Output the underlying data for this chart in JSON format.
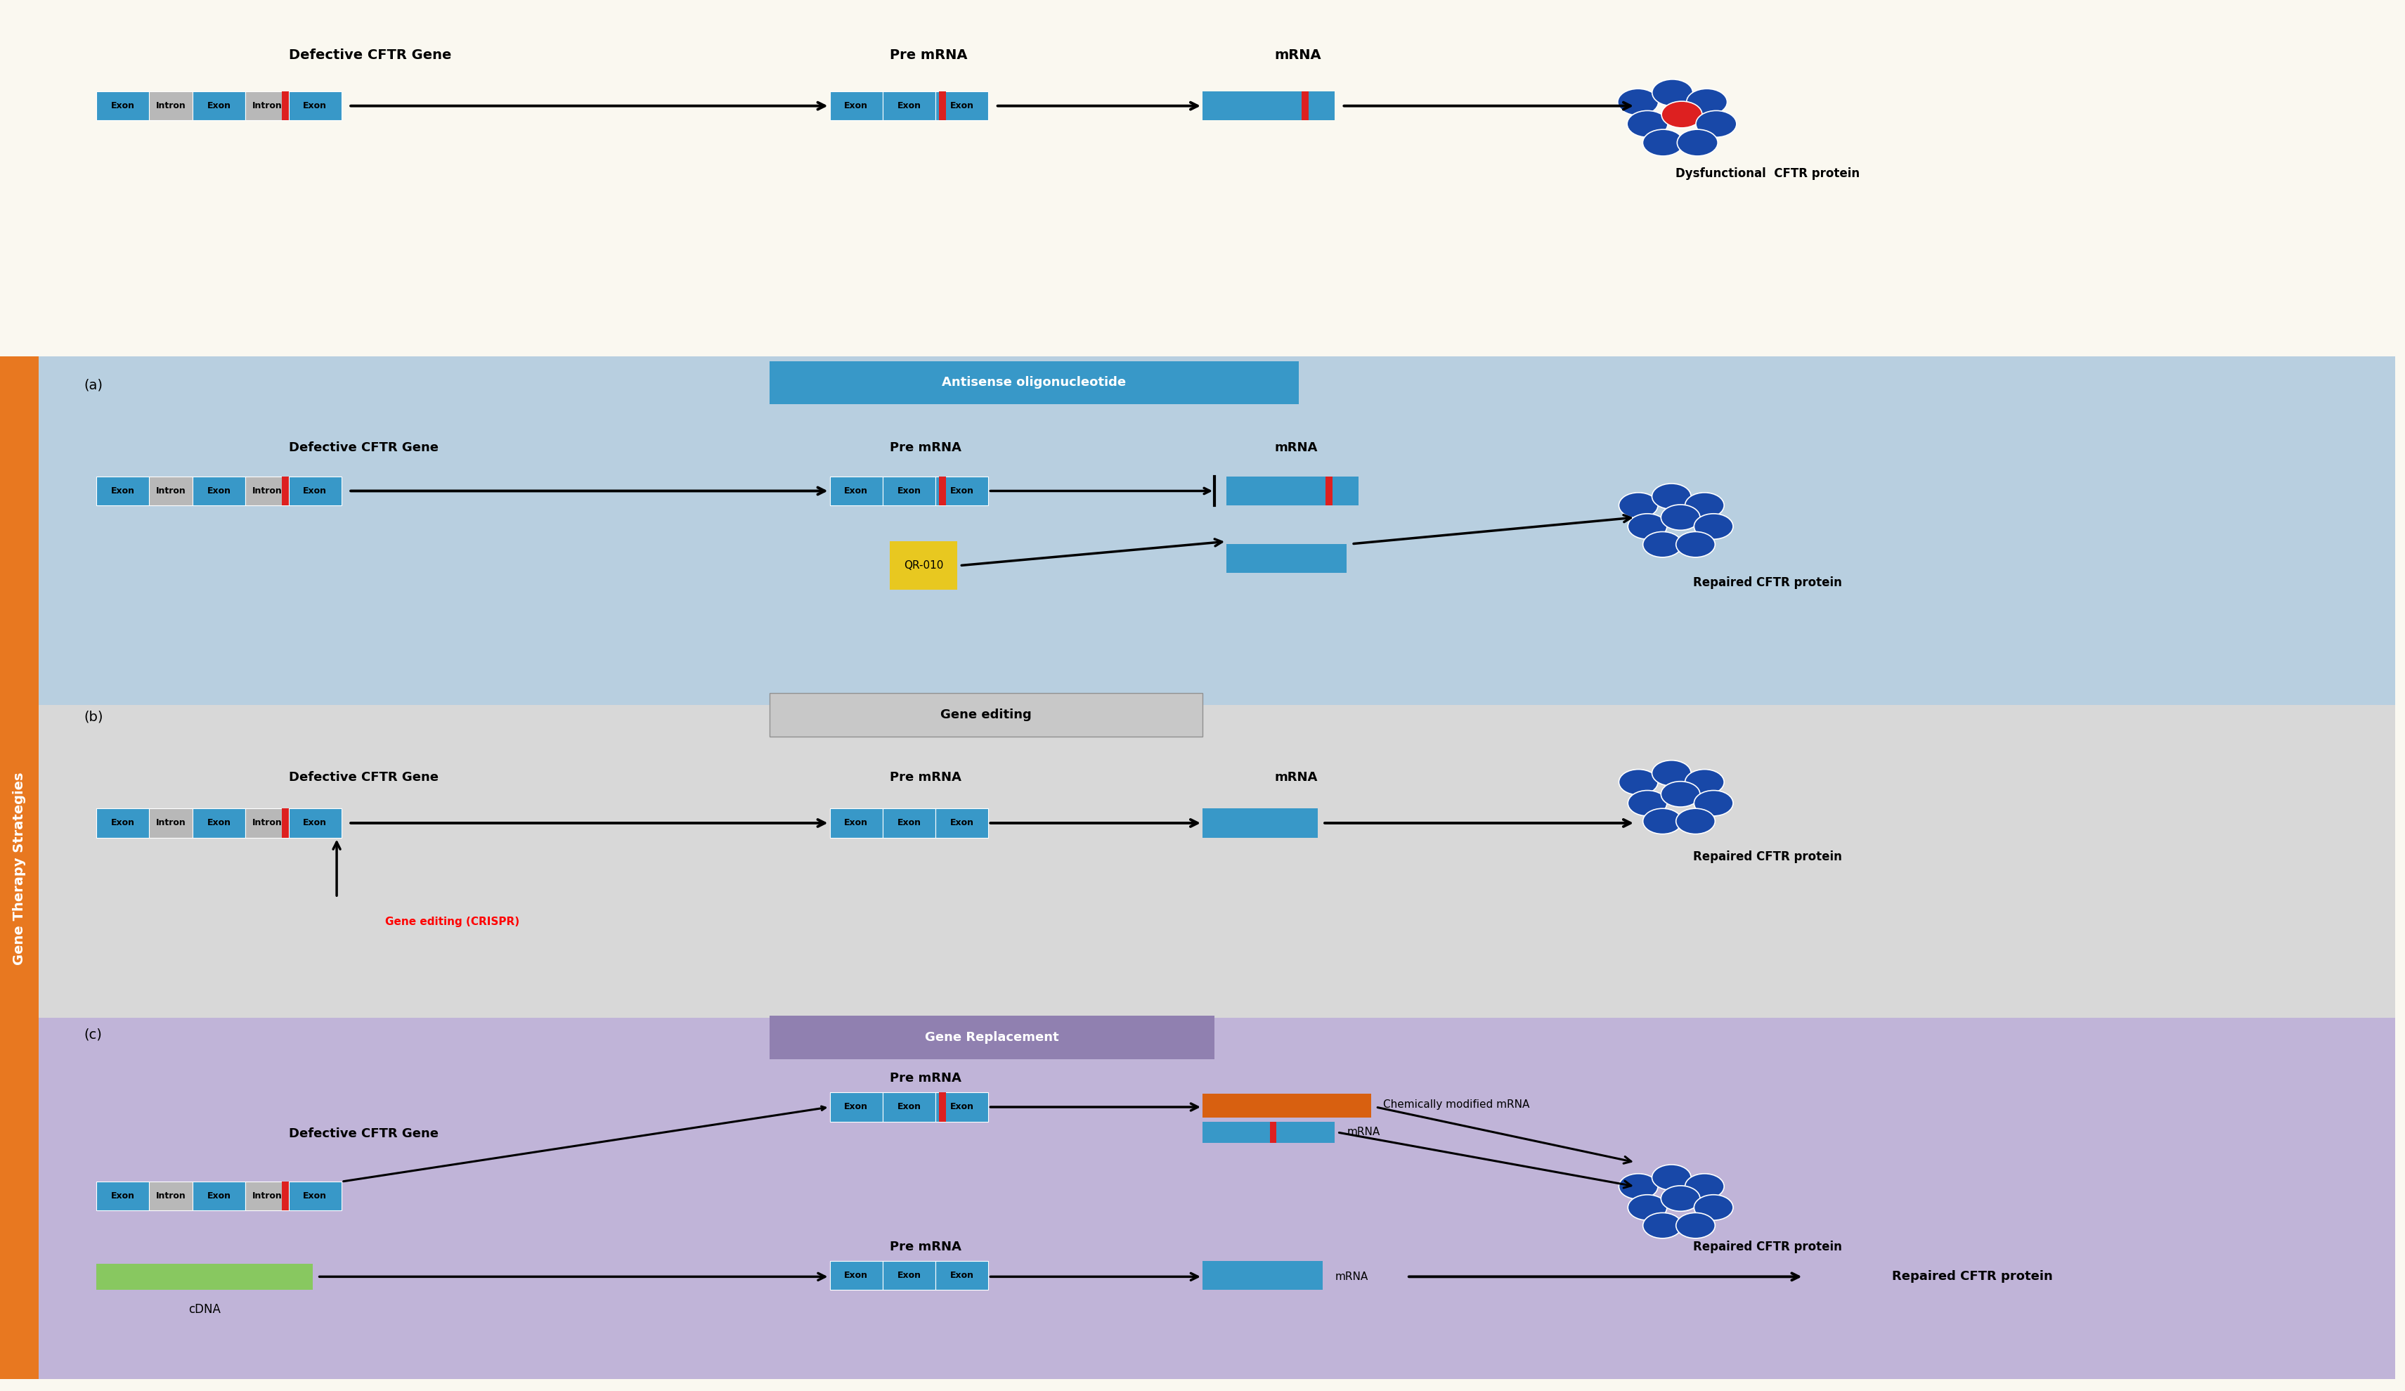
{
  "bg_top": "#faf8f0",
  "bg_a": "#b8cfe0",
  "bg_b": "#d8d8d8",
  "bg_c": "#c0b4d8",
  "orange_bar": "#e87820",
  "exon_color": "#3898c8",
  "intron_color": "#b8b8b8",
  "mutation_color": "#dd2020",
  "mrna_color": "#3898c8",
  "cdna_color": "#88c860",
  "chem_mrna_color": "#d86010",
  "qr010_color": "#e8c820",
  "protein_blue": "#1848a8",
  "protein_red": "#dd2020",
  "title_a": "Antisense oligonucleotide",
  "title_b": "Gene editing",
  "title_c": "Gene Replacement",
  "label_defective": "Defective CFTR Gene",
  "label_premrna": "Pre mRNA",
  "label_mrna": "mRNA",
  "label_dysfunc": "Dysfunctional  CFTR protein",
  "label_repaired_a": "Repaired CFTR protein",
  "label_repaired_b": "Repaired CFTR protein",
  "label_repaired_c": "Repaired CFTR protein",
  "label_crispr": "Gene editing (CRISPR)",
  "label_qr010": "QR-010",
  "label_cdna": "cDNA",
  "label_chem_mrna": "Chemically modified mRNA",
  "label_mrna_c": "mRNA",
  "sidebar_text": "Gene Therapy Strategies",
  "panel_a": "(a)",
  "panel_b": "(b)",
  "panel_c": "(c)"
}
